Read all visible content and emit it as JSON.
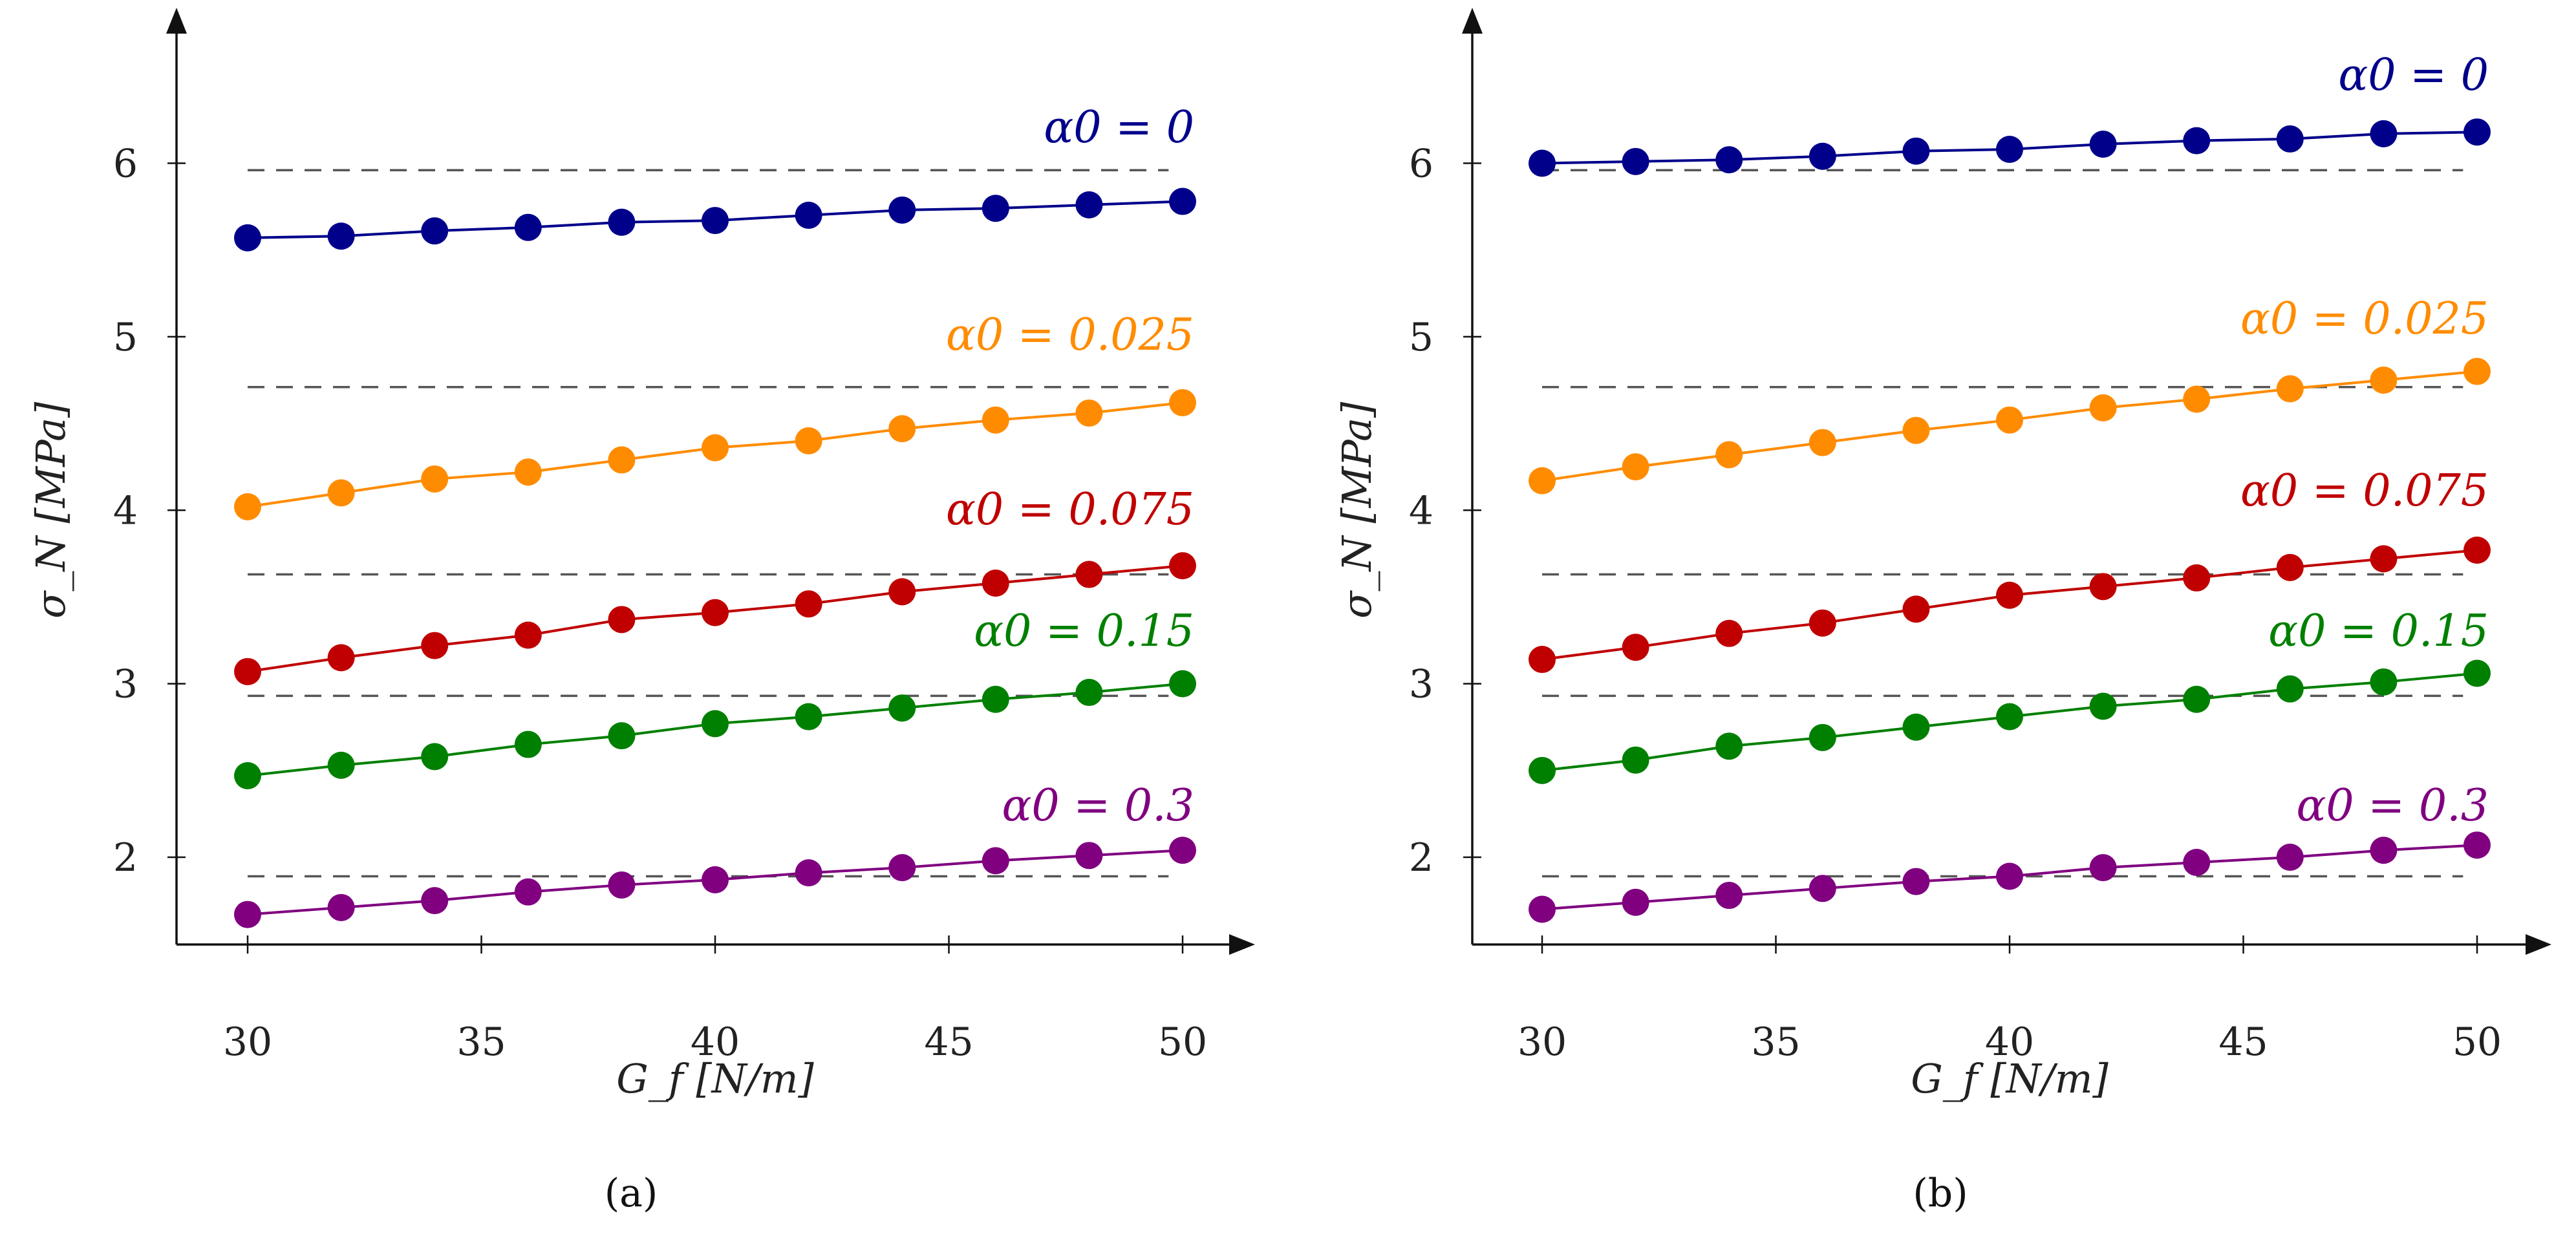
{
  "chart_data": [
    {
      "type": "line",
      "panel_label": "(a)",
      "panel_letter": "a",
      "xlabel": "G_f [N/m]",
      "ylabel": "σ_N [MPa]",
      "x": [
        30,
        32,
        34,
        36,
        38,
        40,
        42,
        44,
        46,
        48,
        50
      ],
      "xticks": [
        "30",
        "35",
        "40",
        "45",
        "50"
      ],
      "yticks": [
        "2",
        "3",
        "4",
        "5",
        "6"
      ],
      "xlim": [
        28.5,
        51.5
      ],
      "ylim": [
        1.5,
        6.5
      ],
      "series": [
        {
          "name": "α0 = 0",
          "color": "#00008b",
          "values": [
            5.57,
            5.58,
            5.61,
            5.63,
            5.66,
            5.67,
            5.7,
            5.73,
            5.74,
            5.76,
            5.78
          ],
          "reference": 5.96
        },
        {
          "name": "α0 = 0.025",
          "color": "#ff8c00",
          "values": [
            4.02,
            4.1,
            4.18,
            4.22,
            4.29,
            4.36,
            4.4,
            4.47,
            4.52,
            4.56,
            4.62
          ],
          "reference": 4.71
        },
        {
          "name": "α0 = 0.075",
          "color": "#c00000",
          "values": [
            3.07,
            3.15,
            3.22,
            3.28,
            3.37,
            3.41,
            3.46,
            3.53,
            3.58,
            3.63,
            3.68
          ],
          "reference": 3.63
        },
        {
          "name": "α0 = 0.15",
          "color": "#008000",
          "values": [
            2.47,
            2.53,
            2.58,
            2.65,
            2.7,
            2.77,
            2.81,
            2.86,
            2.91,
            2.95,
            3.0
          ],
          "reference": 2.93
        },
        {
          "name": "α0 = 0.3",
          "color": "#800080",
          "values": [
            1.67,
            1.71,
            1.75,
            1.8,
            1.84,
            1.87,
            1.91,
            1.94,
            1.98,
            2.01,
            2.04
          ],
          "reference": 1.89
        }
      ]
    },
    {
      "type": "line",
      "panel_label": "(b)",
      "panel_letter": "b",
      "xlabel": "G_f [N/m]",
      "ylabel": "σ_N [MPa]",
      "x": [
        30,
        32,
        34,
        36,
        38,
        40,
        42,
        44,
        46,
        48,
        50
      ],
      "xticks": [
        "30",
        "35",
        "40",
        "45",
        "50"
      ],
      "yticks": [
        "2",
        "3",
        "4",
        "5",
        "6"
      ],
      "xlim": [
        28.5,
        51.5
      ],
      "ylim": [
        1.5,
        6.5
      ],
      "series": [
        {
          "name": "α0 = 0",
          "color": "#00008b",
          "values": [
            6.0,
            6.01,
            6.02,
            6.04,
            6.07,
            6.08,
            6.11,
            6.13,
            6.14,
            6.17,
            6.18
          ],
          "reference": 5.96
        },
        {
          "name": "α0 = 0.025",
          "color": "#ff8c00",
          "values": [
            4.17,
            4.25,
            4.32,
            4.39,
            4.46,
            4.52,
            4.59,
            4.64,
            4.7,
            4.75,
            4.8
          ],
          "reference": 4.71
        },
        {
          "name": "α0 = 0.075",
          "color": "#c00000",
          "values": [
            3.14,
            3.21,
            3.29,
            3.35,
            3.43,
            3.51,
            3.56,
            3.61,
            3.67,
            3.72,
            3.77
          ],
          "reference": 3.63
        },
        {
          "name": "α0 = 0.15",
          "color": "#008000",
          "values": [
            2.5,
            2.56,
            2.64,
            2.69,
            2.75,
            2.81,
            2.87,
            2.91,
            2.97,
            3.01,
            3.06
          ],
          "reference": 2.93
        },
        {
          "name": "α0 = 0.3",
          "color": "#800080",
          "values": [
            1.7,
            1.74,
            1.78,
            1.82,
            1.86,
            1.89,
            1.94,
            1.97,
            2.0,
            2.04,
            2.07
          ],
          "reference": 1.89
        }
      ]
    }
  ]
}
